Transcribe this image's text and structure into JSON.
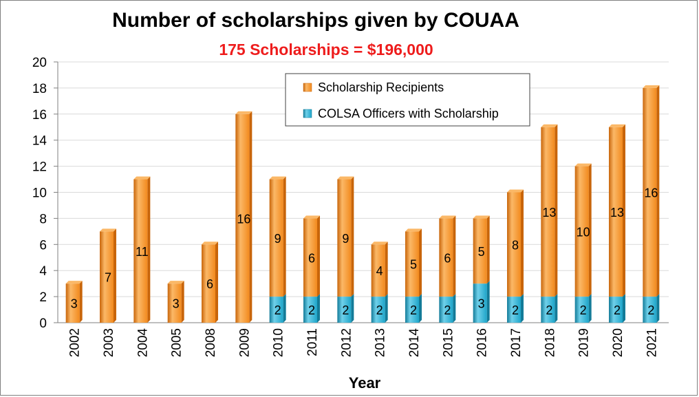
{
  "colors": {
    "recipients": "#f28a1e",
    "recipients_light": "#fbb867",
    "recipients_dark": "#c8650a",
    "officers": "#1fa5c9",
    "officers_light": "#6fd0ea",
    "officers_dark": "#137b98",
    "subtitle": "#ee1c1c",
    "grid": "#d9d9d9",
    "axis": "#7f7f7f"
  },
  "chart_data": {
    "type": "bar",
    "stacked": true,
    "title": "Number of scholarships given by COUAA",
    "subtitle": "175 Scholarships = $196,000",
    "xlabel": "Year",
    "ylabel": "",
    "ylim": [
      0,
      20
    ],
    "yticks": [
      "0",
      "2",
      "4",
      "6",
      "8",
      "10",
      "12",
      "14",
      "16",
      "18",
      "20"
    ],
    "grid": true,
    "legend_position": "top-center",
    "categories": [
      "2002",
      "2003",
      "2004",
      "2005",
      "2008",
      "2009",
      "2010",
      "2011",
      "2012",
      "2013",
      "2014",
      "2015",
      "2016",
      "2017",
      "2018",
      "2019",
      "2020",
      "2021"
    ],
    "series": [
      {
        "name": "COLSA Officers with Scholarship",
        "color_key": "officers",
        "values": [
          0,
          0,
          0,
          0,
          0,
          0,
          2,
          2,
          2,
          2,
          2,
          2,
          3,
          2,
          2,
          2,
          2,
          2
        ],
        "labels": [
          "",
          "",
          "",
          "",
          "",
          "",
          "2",
          "2",
          "2",
          "2",
          "2",
          "2",
          "3",
          "2",
          "2",
          "2",
          "2",
          "2"
        ]
      },
      {
        "name": "Scholarship Recipients",
        "color_key": "recipients",
        "values": [
          3,
          7,
          11,
          3,
          6,
          16,
          9,
          6,
          9,
          4,
          5,
          6,
          5,
          8,
          13,
          10,
          13,
          16
        ],
        "labels": [
          "3",
          "7",
          "11",
          "3",
          "6",
          "16",
          "9",
          "6",
          "9",
          "4",
          "5",
          "6",
          "5",
          "8",
          "13",
          "10",
          "13",
          "16"
        ]
      }
    ],
    "legend": [
      "Scholarship Recipients",
      "COLSA Officers with Scholarship"
    ]
  }
}
